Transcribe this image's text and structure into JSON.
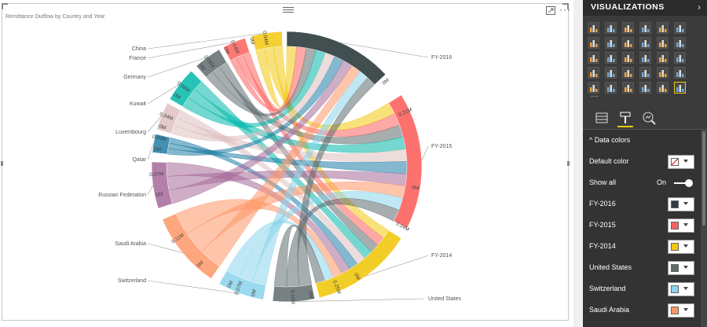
{
  "visual": {
    "title": "Remittance Outflow by Country and Year",
    "more_label": "···"
  },
  "chart_data": {
    "type": "chord",
    "countries": [
      "China",
      "France",
      "Germany",
      "Kuwait",
      "Luxembourg",
      "Qatar",
      "Russian Federation",
      "Saudi Arabia",
      "Switzerland",
      "United States"
    ],
    "years": [
      "FY-2016",
      "FY-2015",
      "FY-2014"
    ],
    "tick_labels": [
      "0.04M",
      "0M",
      "0.04M",
      "0M",
      "0.06M",
      "0M",
      "0.06M",
      "0M",
      "0.04M",
      "0M",
      "0.04M",
      "0M",
      "0.07M",
      "0M",
      "0.11M",
      "0M",
      "0M",
      "0.07M",
      "0M",
      "0.19M",
      "0M",
      "0.25M",
      "0M",
      "0.24M",
      "0M",
      "0.22M",
      "0M"
    ],
    "title": "Remittance Outflow by Country and Year",
    "xlabel": "",
    "ylabel": "",
    "legend": "none"
  },
  "pane": {
    "title": "VISUALIZATIONS",
    "section": "Data colors",
    "rows": [
      {
        "label": "Default color",
        "color": "#ffffff"
      },
      {
        "label": "Show all",
        "toggle": "On"
      },
      {
        "label": "FY-2016",
        "color": "#2d3c3e"
      },
      {
        "label": "FY-2015",
        "color": "#fd625e"
      },
      {
        "label": "FY-2014",
        "color": "#f2c80f"
      },
      {
        "label": "United States",
        "color": "#5f6b6d"
      },
      {
        "label": "Switzerland",
        "color": "#8ad4eb"
      },
      {
        "label": "Saudi Arabia",
        "color": "#fe9666"
      }
    ],
    "ellipsis": "···"
  }
}
